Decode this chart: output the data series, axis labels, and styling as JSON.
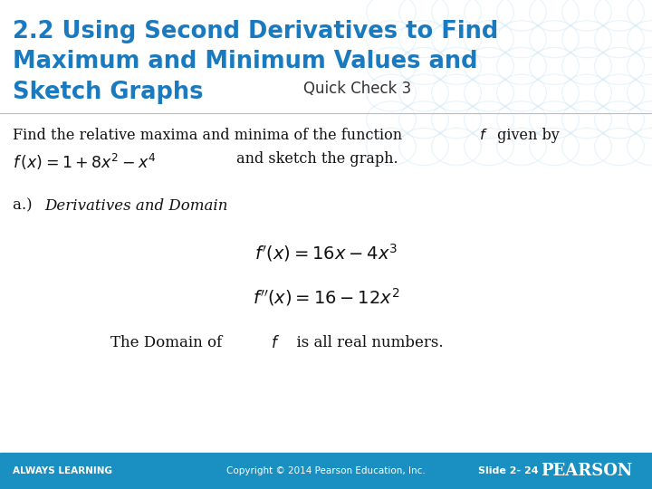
{
  "title_line1": "2.2 Using Second Derivatives to Find",
  "title_line2": "Maximum and Minimum Values and",
  "title_line3": "Sketch Graphs",
  "subtitle": "Quick Check 3",
  "title_color": "#1a7abf",
  "background_color": "#ffffff",
  "footer_bg_color": "#1a8fc1",
  "footer_text_color": "#ffffff",
  "footer_left": "ALWAYS LEARNING",
  "footer_center": "Copyright © 2014 Pearson Education, Inc.",
  "footer_slide": "Slide 2- 24",
  "footer_logo": "PEARSON",
  "watermark_color": "#d0e8f5"
}
